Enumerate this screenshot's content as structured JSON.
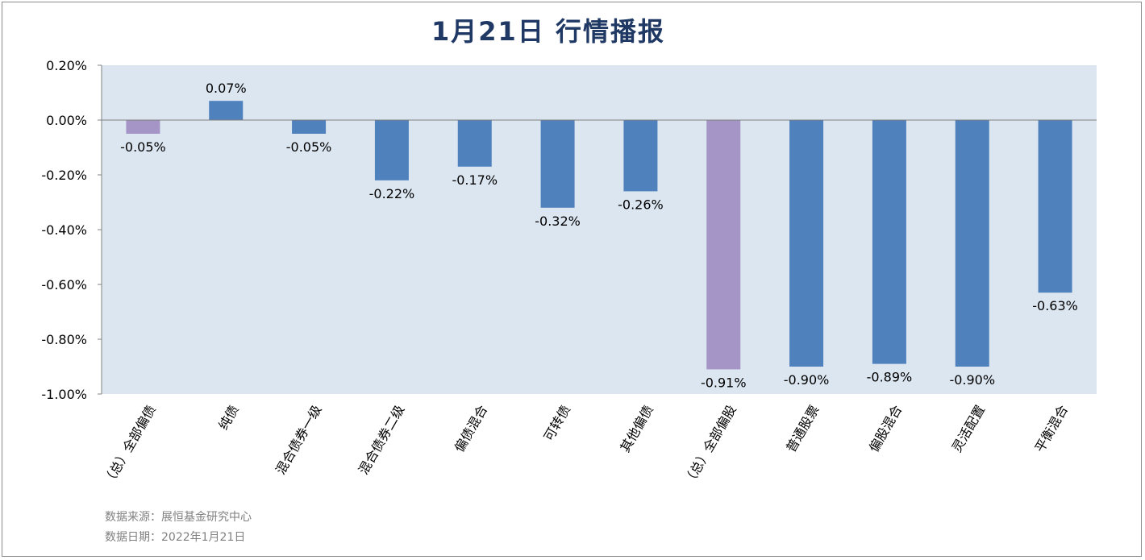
{
  "title": "1月21日  行情播报",
  "footer": {
    "source": "数据来源：展恒基金研究中心",
    "date": "数据日期：2022年1月21日"
  },
  "colors": {
    "plot_bg": "#dce6f1",
    "bar_blue": "#4f81bd",
    "bar_purple": "#a495c6",
    "title": "#1f3864"
  },
  "chart_data": {
    "type": "bar",
    "categories": [
      "（总）全部偏债",
      "纯债",
      "混合债券一级",
      "混合债券二级",
      "偏债混合",
      "可转债",
      "其他偏债",
      "（总）全部偏股",
      "普通股票",
      "偏股混合",
      "灵活配置",
      "平衡混合"
    ],
    "values": [
      -0.05,
      0.07,
      -0.05,
      -0.22,
      -0.17,
      -0.32,
      -0.26,
      -0.91,
      -0.9,
      -0.89,
      -0.9,
      -0.63
    ],
    "data_labels": [
      "-0.05%",
      "0.07%",
      "-0.05%",
      "-0.22%",
      "-0.17%",
      "-0.32%",
      "-0.26%",
      "-0.91%",
      "-0.90%",
      "-0.89%",
      "-0.90%",
      "-0.63%"
    ],
    "bar_colors": [
      "#a495c6",
      "#4f81bd",
      "#4f81bd",
      "#4f81bd",
      "#4f81bd",
      "#4f81bd",
      "#4f81bd",
      "#a495c6",
      "#4f81bd",
      "#4f81bd",
      "#4f81bd",
      "#4f81bd"
    ],
    "ylim": [
      -1.0,
      0.2
    ],
    "yticks": [
      0.2,
      0.0,
      -0.2,
      -0.4,
      -0.6,
      -0.8,
      -1.0
    ],
    "ytick_labels": [
      "0.20%",
      "0.00%",
      "-0.20%",
      "-0.40%",
      "-0.60%",
      "-0.80%",
      "-1.00%"
    ],
    "xlabel": "",
    "ylabel": "",
    "grid": false,
    "legend": "none"
  }
}
